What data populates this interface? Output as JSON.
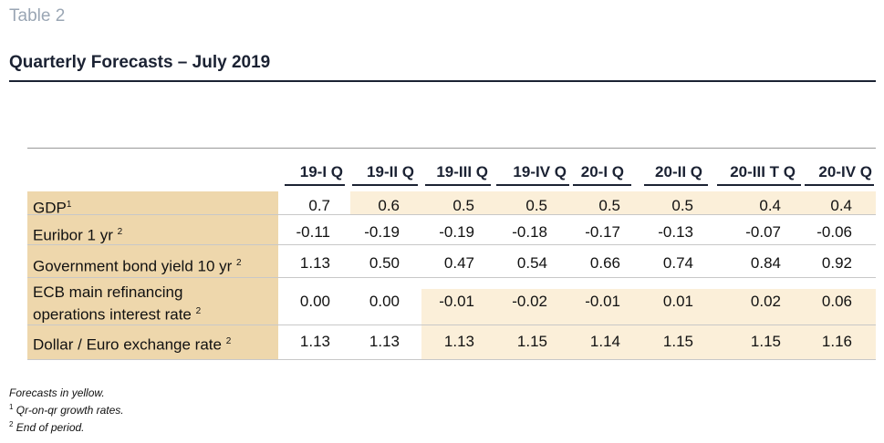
{
  "table_label": "Table 2",
  "title": "Quarterly Forecasts – July 2019",
  "columns": [
    "19-I Q",
    "19-II Q",
    "19-III Q",
    "19-IV Q",
    "20-I Q",
    "20-II Q",
    "20-III T Q",
    "20-IV Q"
  ],
  "rows": [
    {
      "label": "GDP",
      "sup": "1",
      "values": [
        "0.7",
        "0.6",
        "0.5",
        "0.5",
        "0.5",
        "0.5",
        "0.4",
        "0.4"
      ]
    },
    {
      "label": "Euribor 1 yr",
      "sup": "2",
      "values": [
        "-0.11",
        "-0.19",
        "-0.19",
        "-0.18",
        "-0.17",
        "-0.13",
        "-0.07",
        "-0.06"
      ]
    },
    {
      "label": "Government bond yield 10 yr",
      "sup": "2",
      "values": [
        "1.13",
        "0.50",
        "0.47",
        "0.54",
        "0.66",
        "0.74",
        "0.84",
        "0.92"
      ]
    },
    {
      "label_line1": "ECB main refinancing",
      "label_line2": "operations interest rate",
      "sup": "2",
      "values": [
        "0.00",
        "0.00",
        "-0.01",
        "-0.02",
        "-0.01",
        "0.01",
        "0.02",
        "0.06"
      ]
    },
    {
      "label": "Dollar / Euro exchange rate",
      "sup": "2",
      "values": [
        "1.13",
        "1.13",
        "1.13",
        "1.15",
        "1.14",
        "1.15",
        "1.15",
        "1.16"
      ]
    }
  ],
  "notes": {
    "line1": "Forecasts in yellow.",
    "line2_sup": "1",
    "line2": "Qr-on-qr growth rates.",
    "line3_sup": "2",
    "line3": "End of period."
  },
  "colors": {
    "label_column": "#eed7ac",
    "forecast_highlight": "#fbefd9",
    "title": "#1b2233",
    "table_label": "#9aa6b4"
  }
}
